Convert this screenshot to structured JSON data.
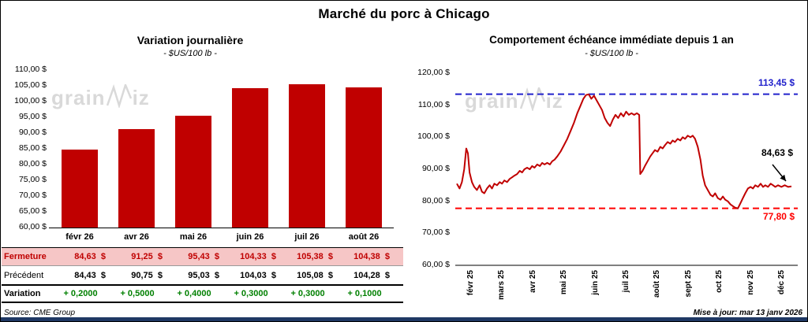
{
  "page": {
    "title": "Marché du porc à Chicago",
    "source": "Source: CME Group",
    "updated": "Mise à jour: mar 13 janv 2026",
    "watermark": {
      "pre": "grain",
      "post": "iz"
    },
    "colors": {
      "series_red": "#C00000",
      "high_blue": "#2222CC",
      "low_red": "#FF0000",
      "variation_green": "#008000",
      "close_row_bg": "#F6C6C6",
      "footer_navy": "#1F3864",
      "watermark_gray": "#D9D9D9"
    }
  },
  "chart_data": [
    {
      "type": "bar",
      "title": "Variation journalière",
      "subtitle": "- $US/100 lb -",
      "categories": [
        "févr 26",
        "avr 26",
        "mai 26",
        "juin 26",
        "juil 26",
        "août 26"
      ],
      "values": [
        84.63,
        91.25,
        95.43,
        104.33,
        105.38,
        104.38
      ],
      "ylim": [
        60,
        110
      ],
      "ytick_step": 5,
      "ytick_labels": [
        "110,00 $",
        "105,00 $",
        "100,00 $",
        "95,00 $",
        "90,00 $",
        "85,00 $",
        "80,00 $",
        "75,00 $",
        "70,00 $",
        "65,00 $",
        "60,00 $"
      ],
      "bar_color": "#C00000",
      "grid": false,
      "table": {
        "rows": [
          {
            "label": "Fermeture",
            "style": "close",
            "values": [
              "84,63  $",
              "91,25  $",
              "95,43  $",
              "104,33  $",
              "105,38  $",
              "104,38  $"
            ]
          },
          {
            "label": "Précédent",
            "style": "previous",
            "values": [
              "84,43  $",
              "90,75  $",
              "95,03  $",
              "104,03  $",
              "105,08  $",
              "104,28  $"
            ]
          },
          {
            "label": "Variation",
            "style": "variation",
            "values": [
              "+ 0,2000",
              "+ 0,5000",
              "+ 0,4000",
              "+ 0,3000",
              "+ 0,3000",
              "+ 0,1000"
            ]
          }
        ]
      }
    },
    {
      "type": "line",
      "title": "Comportement échéance immédiate depuis 1 an",
      "subtitle": "- $US/100 lb -",
      "x_labels": [
        "févr 25",
        "mars 25",
        "avr 25",
        "mai 25",
        "juin 25",
        "juil 25",
        "août 25",
        "sept 25",
        "oct 25",
        "nov 25",
        "déc 25"
      ],
      "ylim": [
        60,
        120
      ],
      "ytick_step": 10,
      "ytick_labels": [
        "120,00 $",
        "110,00 $",
        "100,00 $",
        "90,00 $",
        "80,00 $",
        "70,00 $",
        "60,00 $"
      ],
      "line_color": "#C00000",
      "grid": false,
      "high_line": {
        "value": 113.45,
        "label": "113,45 $",
        "color": "#2222CC"
      },
      "low_line": {
        "value": 77.8,
        "label": "77,80 $",
        "color": "#FF0000"
      },
      "last_label": {
        "value": 84.63,
        "label": "84,63 $"
      },
      "points": [
        [
          0.0,
          85.5
        ],
        [
          0.008,
          84
        ],
        [
          0.015,
          86
        ],
        [
          0.022,
          90
        ],
        [
          0.028,
          96.5
        ],
        [
          0.033,
          95
        ],
        [
          0.038,
          89
        ],
        [
          0.045,
          86
        ],
        [
          0.052,
          84.5
        ],
        [
          0.06,
          83.5
        ],
        [
          0.068,
          85
        ],
        [
          0.075,
          83
        ],
        [
          0.082,
          82.5
        ],
        [
          0.09,
          84
        ],
        [
          0.098,
          85
        ],
        [
          0.105,
          84
        ],
        [
          0.112,
          85.5
        ],
        [
          0.12,
          85
        ],
        [
          0.128,
          86
        ],
        [
          0.135,
          85.5
        ],
        [
          0.142,
          86.5
        ],
        [
          0.15,
          86
        ],
        [
          0.158,
          87
        ],
        [
          0.165,
          87.5
        ],
        [
          0.172,
          88
        ],
        [
          0.18,
          88.5
        ],
        [
          0.188,
          89.5
        ],
        [
          0.195,
          89
        ],
        [
          0.202,
          90
        ],
        [
          0.21,
          90.5
        ],
        [
          0.218,
          90
        ],
        [
          0.225,
          91
        ],
        [
          0.232,
          90.5
        ],
        [
          0.24,
          91.5
        ],
        [
          0.248,
          91
        ],
        [
          0.255,
          92
        ],
        [
          0.262,
          91.5
        ],
        [
          0.27,
          92
        ],
        [
          0.278,
          91.5
        ],
        [
          0.285,
          92.5
        ],
        [
          0.292,
          93
        ],
        [
          0.3,
          94
        ],
        [
          0.31,
          95.5
        ],
        [
          0.32,
          97.5
        ],
        [
          0.33,
          99.5
        ],
        [
          0.34,
          102
        ],
        [
          0.35,
          104.5
        ],
        [
          0.36,
          107.5
        ],
        [
          0.37,
          110
        ],
        [
          0.378,
          112
        ],
        [
          0.386,
          113.2
        ],
        [
          0.394,
          113.4
        ],
        [
          0.402,
          112
        ],
        [
          0.41,
          113
        ],
        [
          0.418,
          111.5
        ],
        [
          0.426,
          110
        ],
        [
          0.434,
          108.5
        ],
        [
          0.442,
          106
        ],
        [
          0.45,
          104.5
        ],
        [
          0.458,
          103.5
        ],
        [
          0.466,
          105.5
        ],
        [
          0.474,
          107
        ],
        [
          0.482,
          106
        ],
        [
          0.49,
          107.5
        ],
        [
          0.498,
          106.5
        ],
        [
          0.506,
          108
        ],
        [
          0.514,
          107
        ],
        [
          0.522,
          107.5
        ],
        [
          0.53,
          107
        ],
        [
          0.538,
          107.5
        ],
        [
          0.545,
          107
        ],
        [
          0.548,
          88.5
        ],
        [
          0.555,
          89.5
        ],
        [
          0.562,
          91
        ],
        [
          0.57,
          92.5
        ],
        [
          0.578,
          94
        ],
        [
          0.585,
          95
        ],
        [
          0.592,
          96
        ],
        [
          0.6,
          95.5
        ],
        [
          0.608,
          97
        ],
        [
          0.615,
          96.5
        ],
        [
          0.622,
          97.5
        ],
        [
          0.63,
          98.5
        ],
        [
          0.638,
          98
        ],
        [
          0.645,
          99
        ],
        [
          0.652,
          98.5
        ],
        [
          0.66,
          99.5
        ],
        [
          0.668,
          99
        ],
        [
          0.675,
          100
        ],
        [
          0.682,
          99.5
        ],
        [
          0.69,
          100.5
        ],
        [
          0.698,
          100
        ],
        [
          0.705,
          100.5
        ],
        [
          0.712,
          99.5
        ],
        [
          0.72,
          97
        ],
        [
          0.728,
          93
        ],
        [
          0.735,
          88
        ],
        [
          0.742,
          85
        ],
        [
          0.75,
          83.5
        ],
        [
          0.758,
          82
        ],
        [
          0.765,
          81.5
        ],
        [
          0.772,
          82.5
        ],
        [
          0.78,
          81
        ],
        [
          0.788,
          80.5
        ],
        [
          0.795,
          81.5
        ],
        [
          0.802,
          80.5
        ],
        [
          0.81,
          80
        ],
        [
          0.818,
          79
        ],
        [
          0.825,
          78.5
        ],
        [
          0.832,
          78
        ],
        [
          0.84,
          77.8
        ],
        [
          0.848,
          79.5
        ],
        [
          0.855,
          81
        ],
        [
          0.862,
          82.5
        ],
        [
          0.87,
          84
        ],
        [
          0.878,
          84.5
        ],
        [
          0.885,
          84
        ],
        [
          0.892,
          85
        ],
        [
          0.9,
          84.5
        ],
        [
          0.908,
          85.5
        ],
        [
          0.915,
          84.5
        ],
        [
          0.922,
          85
        ],
        [
          0.93,
          84.5
        ],
        [
          0.938,
          85.5
        ],
        [
          0.945,
          85
        ],
        [
          0.952,
          84.5
        ],
        [
          0.96,
          85
        ],
        [
          0.97,
          84.5
        ],
        [
          0.98,
          85
        ],
        [
          0.99,
          84.5
        ],
        [
          1.0,
          84.63
        ]
      ]
    }
  ]
}
